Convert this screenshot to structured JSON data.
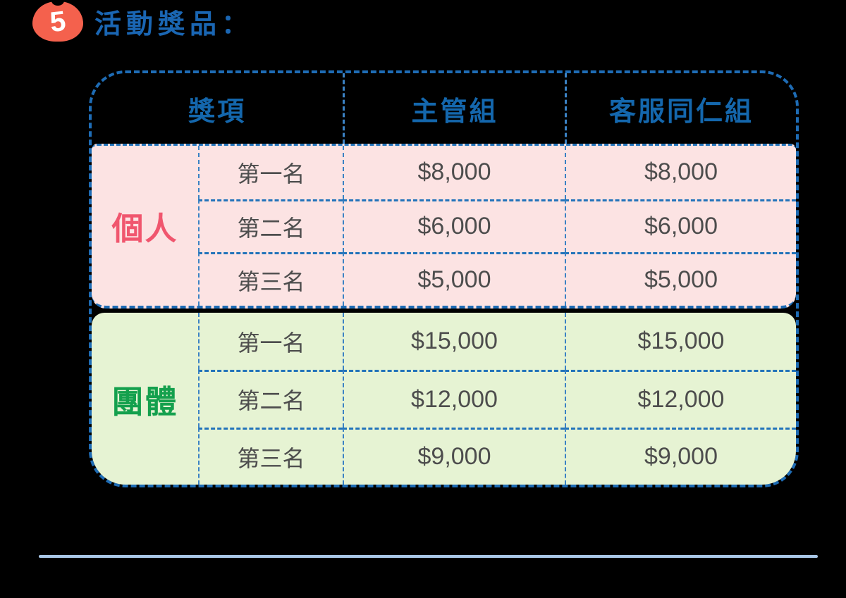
{
  "section": {
    "number": "5",
    "title": "活動獎品："
  },
  "table": {
    "header": {
      "award": "獎項",
      "manager": "主管組",
      "service": "客服同仁組"
    },
    "groups": [
      {
        "name": "個人",
        "rows": [
          {
            "rank": "第一名",
            "manager": "$8,000",
            "service": "$8,000"
          },
          {
            "rank": "第二名",
            "manager": "$6,000",
            "service": "$6,000"
          },
          {
            "rank": "第三名",
            "manager": "$5,000",
            "service": "$5,000"
          }
        ]
      },
      {
        "name": "團體",
        "rows": [
          {
            "rank": "第一名",
            "manager": "$15,000",
            "service": "$15,000"
          },
          {
            "rank": "第二名",
            "manager": "$12,000",
            "service": "$12,000"
          },
          {
            "rank": "第三名",
            "manager": "$9,000",
            "service": "$9,000"
          }
        ]
      }
    ]
  },
  "colors": {
    "background": "#000000",
    "badge": "#f4614d",
    "badge_number": "#ffffff",
    "title_text": "#1a66b3",
    "header_text": "#1467ad",
    "outer_border": "#1e6cb5",
    "inner_border": "#3b82c4",
    "individual_bg": "#fce3e3",
    "individual_label": "#f0566e",
    "team_bg": "#e6f3d3",
    "team_label": "#14a04d",
    "cell_text": "#4d4d4d",
    "bottom_rule": "#a9c7e7"
  }
}
